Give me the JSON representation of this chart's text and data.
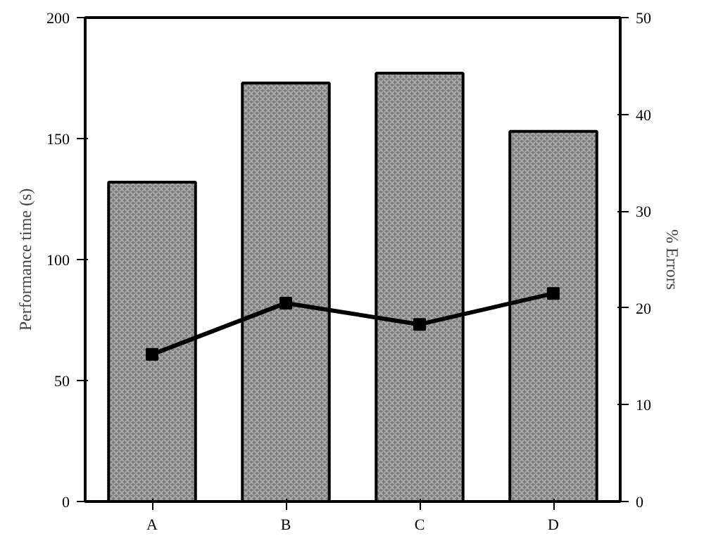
{
  "chart_data": {
    "type": "bar",
    "categories": [
      "A",
      "B",
      "C",
      "D"
    ],
    "series": [
      {
        "color": "#7a7a7a",
        "values": [
          132,
          173,
          177,
          153
        ]
      },
      {
        "type": "line",
        "axis": "y2",
        "color": "#000000",
        "marker": "square",
        "values": [
          15.2,
          20.5,
          18.3,
          21.5
        ]
      }
    ],
    "ylabel": "Performance time (s)",
    "y2label": "% Errors",
    "ylim": [
      0,
      200
    ],
    "yticks": [
      0,
      50,
      100,
      150,
      200
    ],
    "y2lim": [
      0,
      50
    ],
    "y2ticks": [
      0,
      10,
      20,
      30,
      40,
      50
    ],
    "grid": false
  }
}
